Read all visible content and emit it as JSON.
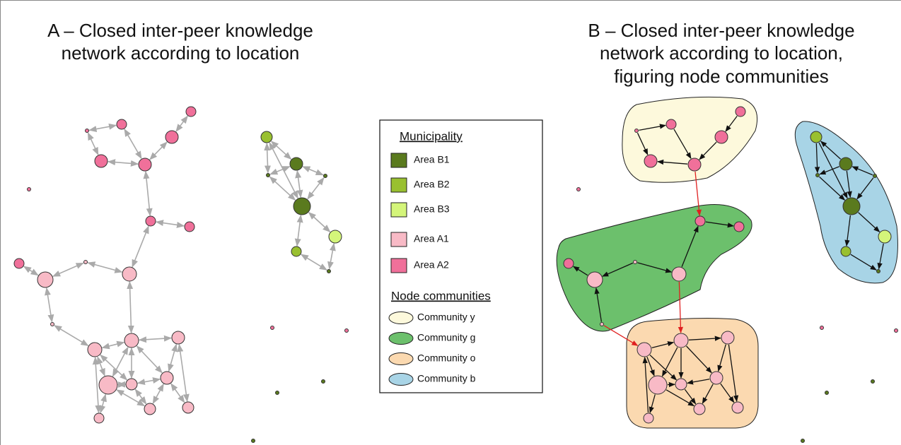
{
  "panel_a": {
    "title": [
      "A – Closed inter-peer knowledge",
      "network according to location"
    ]
  },
  "panel_b": {
    "title": [
      "B – Closed inter-peer knowledge",
      "network according to location,",
      "figuring node communities"
    ]
  },
  "legend": {
    "municipality_title": "Municipality",
    "municipality": [
      "Area B1",
      "Area B2",
      "Area B3",
      "Area A1",
      "Area A2"
    ],
    "communities_title": "Node communities",
    "communities": [
      "Community y",
      "Community g",
      "Community o",
      "Community b"
    ]
  }
}
